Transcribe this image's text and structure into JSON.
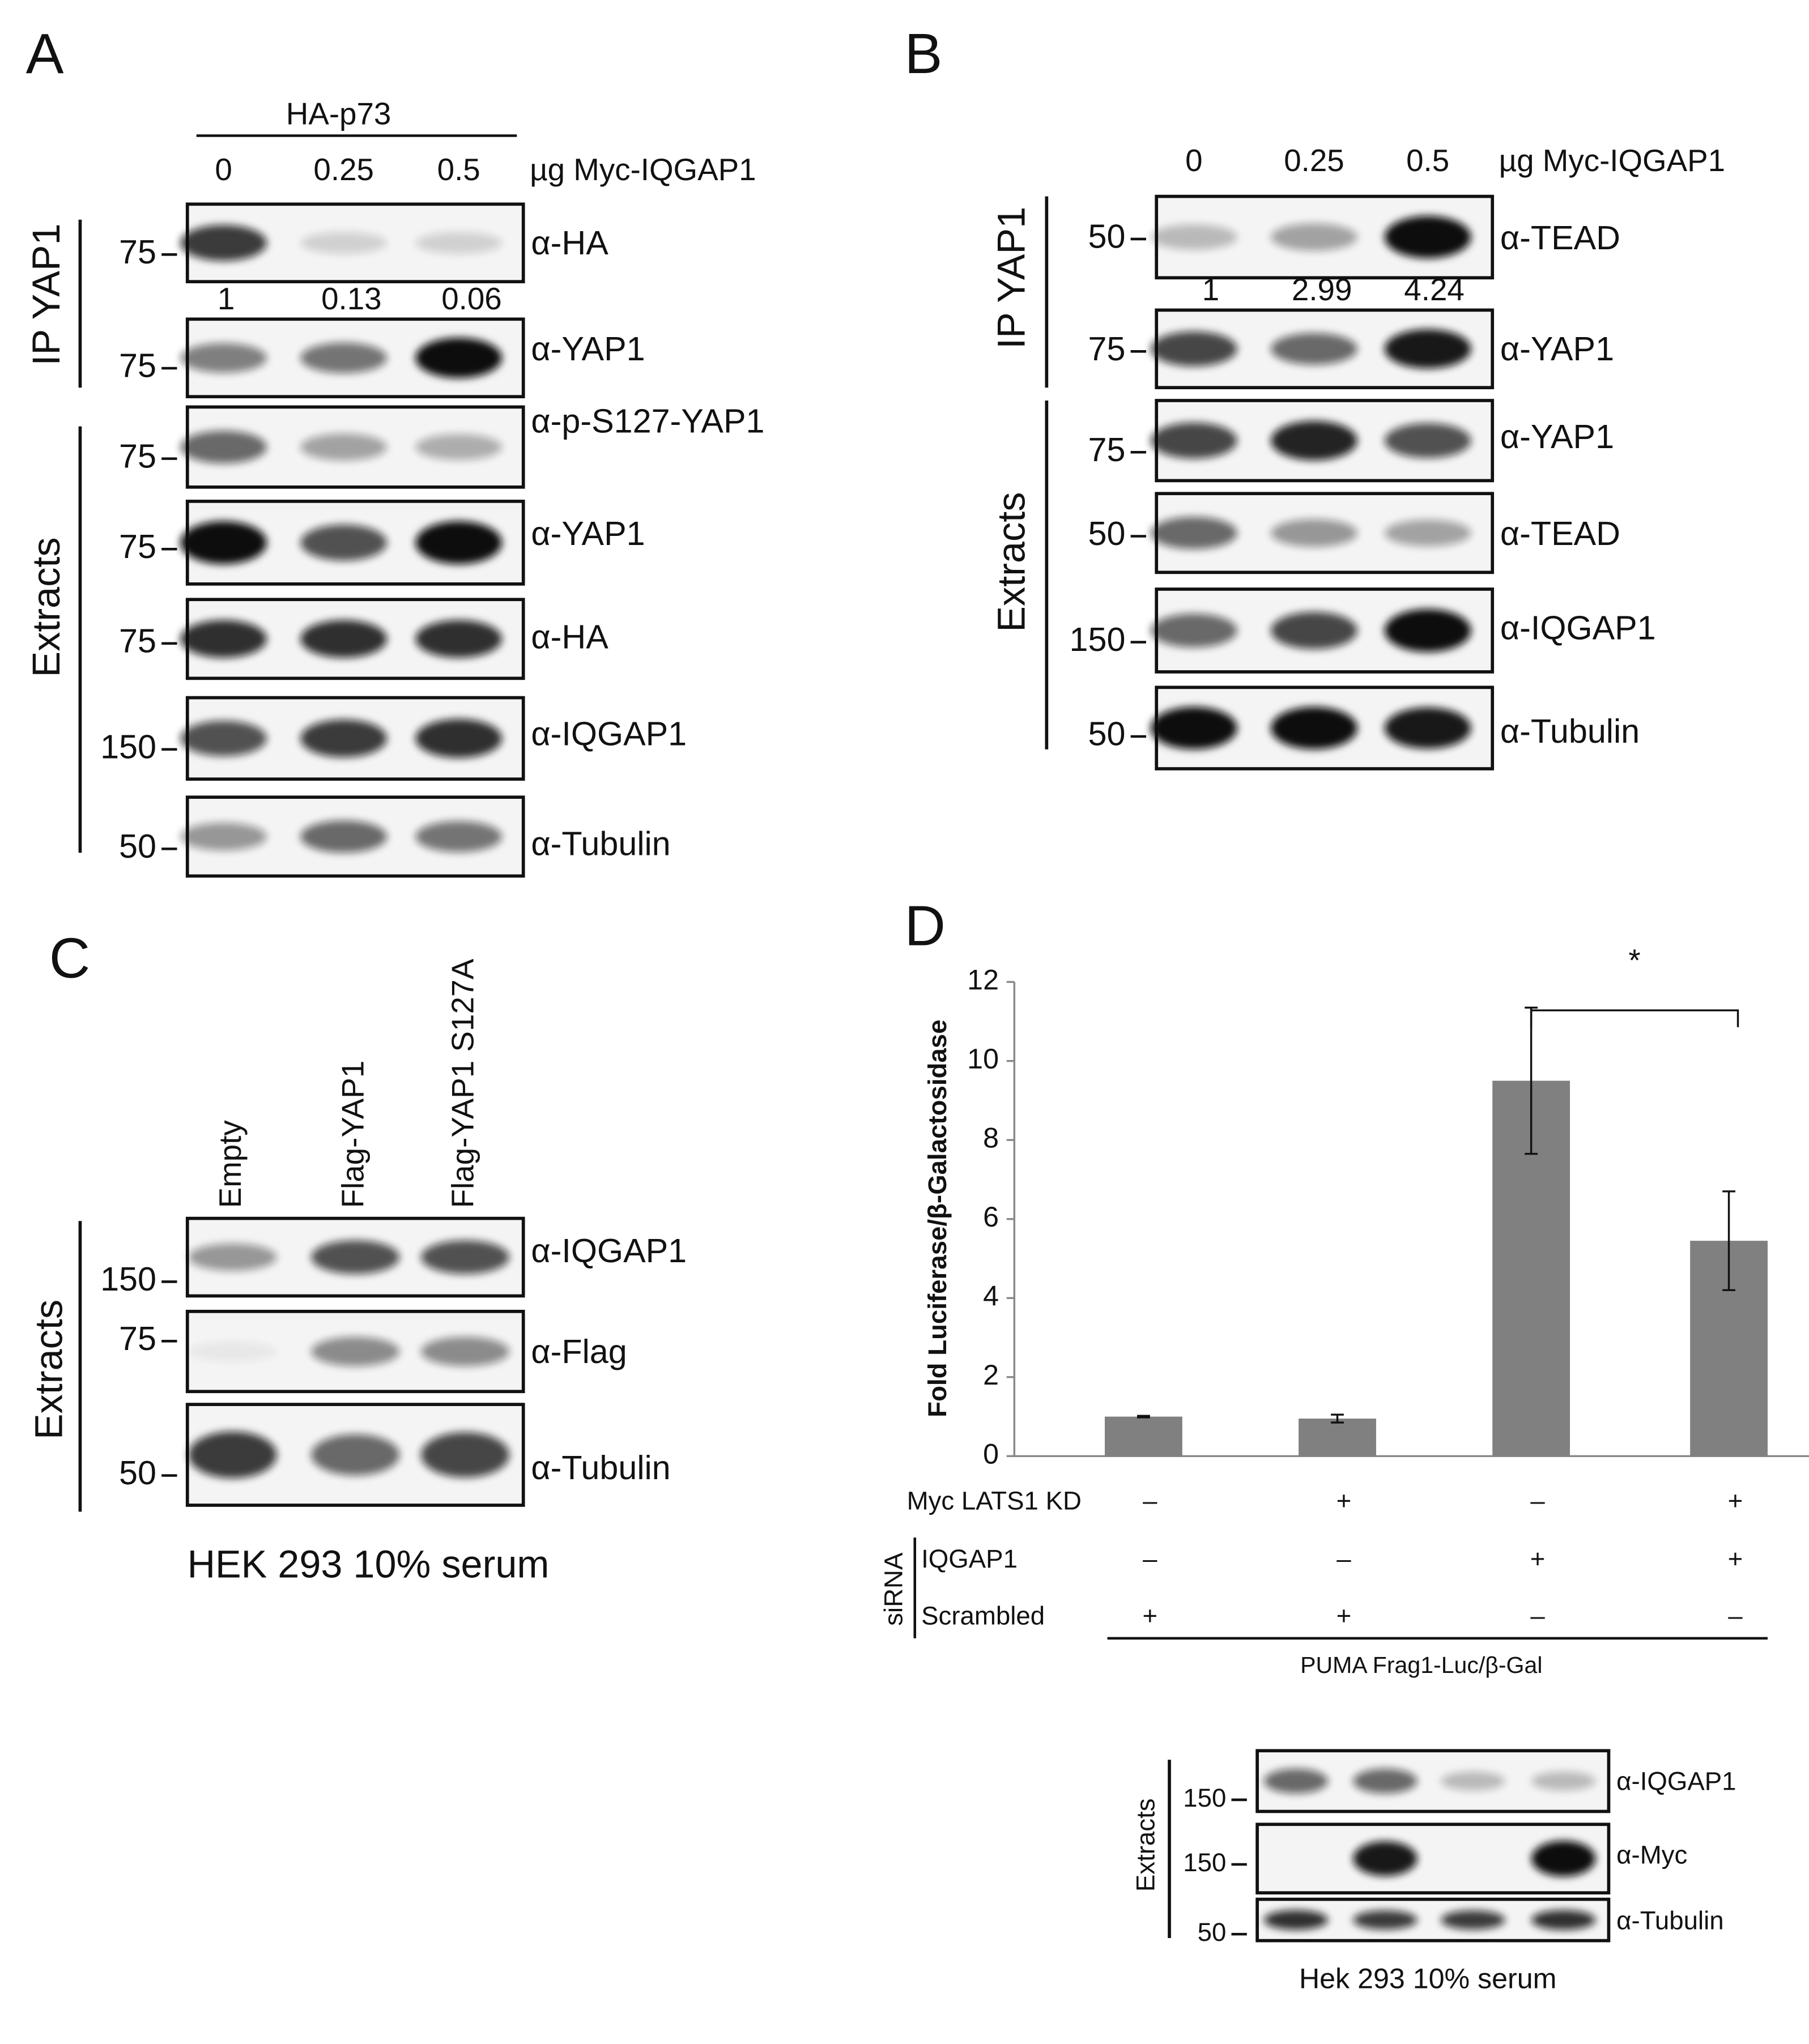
{
  "panel_a": {
    "label": "A",
    "group": "HA-p73",
    "lanes": [
      "0",
      "0.25",
      "0.5"
    ],
    "lane_unit": "µg Myc-IQGAP1",
    "sections": [
      "IP YAP1",
      "Extracts"
    ],
    "quant": [
      "1",
      "0.13",
      "0.06"
    ],
    "blots": [
      {
        "marker": "75",
        "antibody": "α-HA"
      },
      {
        "marker": "75",
        "antibody": "α-YAP1"
      },
      {
        "marker": "75",
        "antibody": "α-p-S127-YAP1"
      },
      {
        "marker": "75",
        "antibody": "α-YAP1"
      },
      {
        "marker": "75",
        "antibody": "α-HA"
      },
      {
        "marker": "150",
        "antibody": "α-IQGAP1"
      },
      {
        "marker": "50",
        "antibody": "α-Tubulin"
      }
    ]
  },
  "panel_b": {
    "label": "B",
    "lanes": [
      "0",
      "0.25",
      "0.5"
    ],
    "lane_unit": "µg Myc-IQGAP1",
    "sections": [
      "IP YAP1",
      "Extracts"
    ],
    "quant": [
      "1",
      "2.99",
      "4.24"
    ],
    "blots": [
      {
        "marker": "50",
        "antibody": "α-TEAD"
      },
      {
        "marker": "75",
        "antibody": "α-YAP1"
      },
      {
        "marker": "75",
        "antibody": "α-YAP1"
      },
      {
        "marker": "50",
        "antibody": "α-TEAD"
      },
      {
        "marker": "150",
        "antibody": "α-IQGAP1"
      },
      {
        "marker": "50",
        "antibody": "α-Tubulin"
      }
    ]
  },
  "panel_c": {
    "label": "C",
    "lanes": [
      "Empty",
      "Flag-YAP1",
      "Flag-YAP1 S127A"
    ],
    "sections": [
      "Extracts"
    ],
    "blots": [
      {
        "marker": "150",
        "antibody": "α-IQGAP1"
      },
      {
        "marker": "75",
        "antibody": "α-Flag"
      },
      {
        "marker": "50",
        "antibody": "α-Tubulin"
      }
    ],
    "footer": "HEK 293 10% serum"
  },
  "panel_d": {
    "label": "D",
    "sections": [
      "Extracts"
    ],
    "blots": [
      {
        "marker": "150",
        "antibody": "α-IQGAP1"
      },
      {
        "marker": "150",
        "antibody": "α-Myc"
      },
      {
        "marker": "50",
        "antibody": "α-Tubulin"
      }
    ],
    "footer": "Hek 293 10% serum"
  },
  "chart_data": {
    "type": "bar",
    "y_label": "Fold Luciferase/β-Galactosidase",
    "categories": [
      null,
      null,
      null,
      null
    ],
    "values": [
      1,
      0.95,
      9.5,
      5.45
    ],
    "errors": [
      0.02,
      0.1,
      1.85,
      1.25
    ],
    "color": "#808080",
    "ylim": [
      0,
      12
    ],
    "yticks": [
      0,
      2,
      4,
      6,
      8,
      10,
      12
    ],
    "significance": "*",
    "conditions": {
      "group_label": "siRNA",
      "rows": [
        {
          "label": "Myc LATS1 KD",
          "marks": [
            "–",
            "+",
            "–",
            "+"
          ]
        },
        {
          "label": "IQGAP1",
          "marks": [
            "–",
            "–",
            "+",
            "+"
          ]
        },
        {
          "label": "Scrambled",
          "marks": [
            "+",
            "+",
            "–",
            "–"
          ]
        }
      ]
    },
    "footer": "PUMA Frag1-Luc/β-Gal"
  }
}
